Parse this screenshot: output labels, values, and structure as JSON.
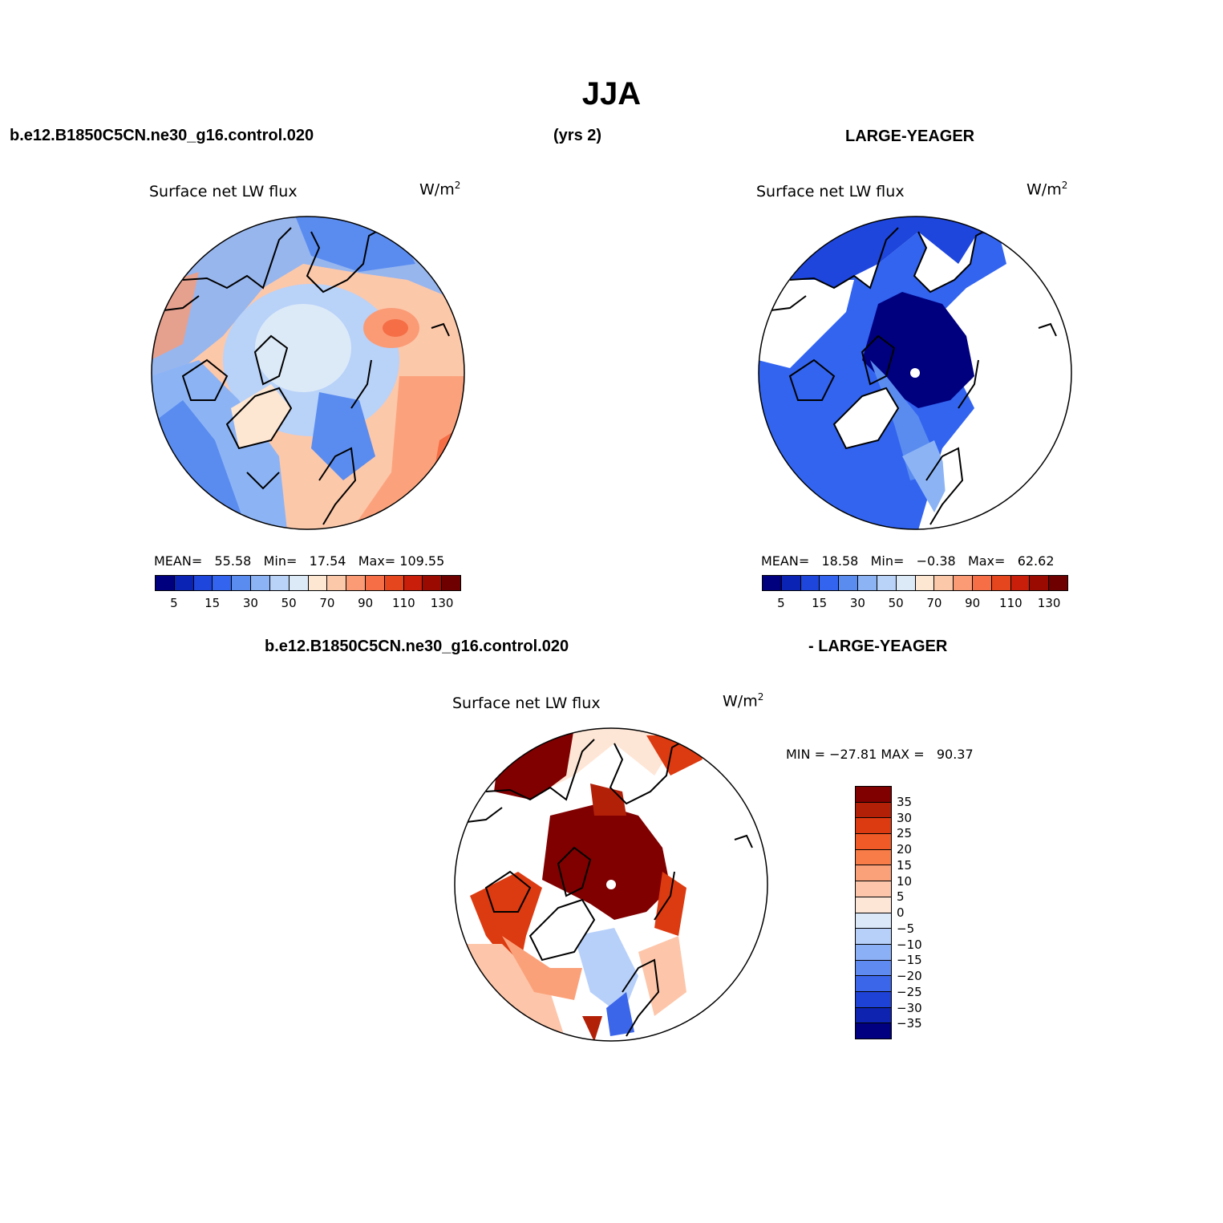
{
  "figure": {
    "season": "JJA",
    "case_name": "b.e12.B1850C5CN.ne30_g16.control.020",
    "years": "(yrs 2)",
    "obs_name": "LARGE-YEAGER",
    "diff_case_name": "b.e12.B1850C5CN.ne30_g16.control.020",
    "diff_obs_name": "- LARGE-YEAGER"
  },
  "panels": [
    {
      "title": "Surface net LW flux",
      "units": "W/m",
      "units_sup": "2",
      "stats": {
        "mean_label": "MEAN=",
        "mean": "55.58",
        "min_label": "Min=",
        "min": "17.54",
        "max_label": "Max=",
        "max": "109.55"
      }
    },
    {
      "title": "Surface net LW flux",
      "units": "W/m",
      "units_sup": "2",
      "stats": {
        "mean_label": "MEAN=",
        "mean": "18.58",
        "min_label": "Min=",
        "min": "−0.38",
        "max_label": "Max=",
        "max": "62.62"
      }
    },
    {
      "title": "Surface net LW flux",
      "units": "W/m",
      "units_sup": "2",
      "stats": {
        "min_label": "MIN =",
        "min": "−27.81",
        "max_label": "MAX =",
        "max": "90.37"
      }
    }
  ],
  "colorbar_top": {
    "colors": [
      "#00007f",
      "#0a23b4",
      "#1e46dc",
      "#3264f0",
      "#5a8cf0",
      "#8cb4f5",
      "#b9d2f8",
      "#dceaf8",
      "#fde6d2",
      "#fcc8aa",
      "#fa9b76",
      "#f56e46",
      "#e6461e",
      "#c81e0a",
      "#9b0a00",
      "#6e0000"
    ],
    "tick_labels": [
      "5",
      "15",
      "30",
      "50",
      "70",
      "90",
      "110",
      "130"
    ]
  },
  "colorbar_diff": {
    "colors": [
      "#800000",
      "#b32008",
      "#dc3a10",
      "#ef5a26",
      "#f77c48",
      "#fba17a",
      "#fdc6aa",
      "#fee6d6",
      "#dbe8f8",
      "#b7d0fa",
      "#8cb0f6",
      "#5f8af0",
      "#3c66ea",
      "#1f42d6",
      "#0e24b0",
      "#000080"
    ],
    "tick_labels": [
      "35",
      "30",
      "25",
      "20",
      "15",
      "10",
      "5",
      "0",
      "−5",
      "−10",
      "−15",
      "−20",
      "−25",
      "−30",
      "−35"
    ]
  }
}
